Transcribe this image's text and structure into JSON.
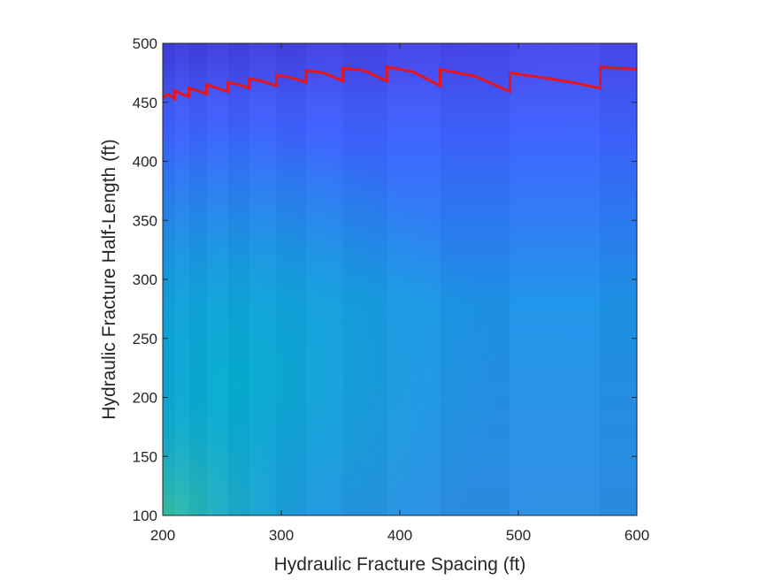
{
  "chart_data": {
    "type": "heatmap",
    "title": "",
    "xlabel": "Hydraulic Fracture Spacing (ft)",
    "ylabel": "Hydraulic Fracture Half-Length (ft)",
    "xlim": [
      200,
      600
    ],
    "ylim": [
      100,
      500
    ],
    "xticks": [
      200,
      300,
      400,
      500,
      600
    ],
    "yticks": [
      100,
      150,
      200,
      250,
      300,
      350,
      400,
      450,
      500
    ],
    "xtick_labels": [
      "200",
      "300",
      "400",
      "500",
      "600"
    ],
    "ytick_labels": [
      "100",
      "150",
      "200",
      "250",
      "300",
      "350",
      "400",
      "450",
      "500"
    ],
    "grid": false,
    "colormap": "parula",
    "heatmap_colors": {
      "top_left": "#3a3dd8",
      "top_right": "#4a4af0",
      "upper_band": "#3d63ff",
      "mid": "#1e94ea",
      "bottom_left": "#36c2a0",
      "bottom_mid": "#00b4cc",
      "bottom_right": "#2d8ee6",
      "high_area": "#10aad6"
    },
    "column_boundaries": [
      210,
      222,
      237,
      255,
      273,
      296,
      321,
      352,
      389,
      434,
      493,
      569
    ],
    "series": [
      {
        "color": "#e8141a",
        "points": [
          [
            200,
            454
          ],
          [
            204,
            457
          ],
          [
            210,
            453
          ],
          [
            210,
            460
          ],
          [
            216,
            457
          ],
          [
            222,
            455
          ],
          [
            222,
            462
          ],
          [
            229,
            460
          ],
          [
            237,
            457
          ],
          [
            237,
            465
          ],
          [
            246,
            462
          ],
          [
            255,
            459
          ],
          [
            255,
            467
          ],
          [
            264,
            465
          ],
          [
            273,
            462
          ],
          [
            273,
            470
          ],
          [
            284,
            468
          ],
          [
            296,
            464
          ],
          [
            296,
            473
          ],
          [
            308,
            471
          ],
          [
            321,
            467
          ],
          [
            321,
            477
          ],
          [
            336,
            475
          ],
          [
            352,
            468
          ],
          [
            352,
            479
          ],
          [
            370,
            477
          ],
          [
            389,
            468
          ],
          [
            389,
            480
          ],
          [
            411,
            476
          ],
          [
            434,
            464
          ],
          [
            434,
            478
          ],
          [
            464,
            472
          ],
          [
            493,
            459
          ],
          [
            493,
            475
          ],
          [
            520,
            471
          ],
          [
            545,
            467
          ],
          [
            569,
            462
          ],
          [
            569,
            480
          ],
          [
            585,
            479
          ],
          [
            600,
            478
          ]
        ]
      }
    ]
  }
}
